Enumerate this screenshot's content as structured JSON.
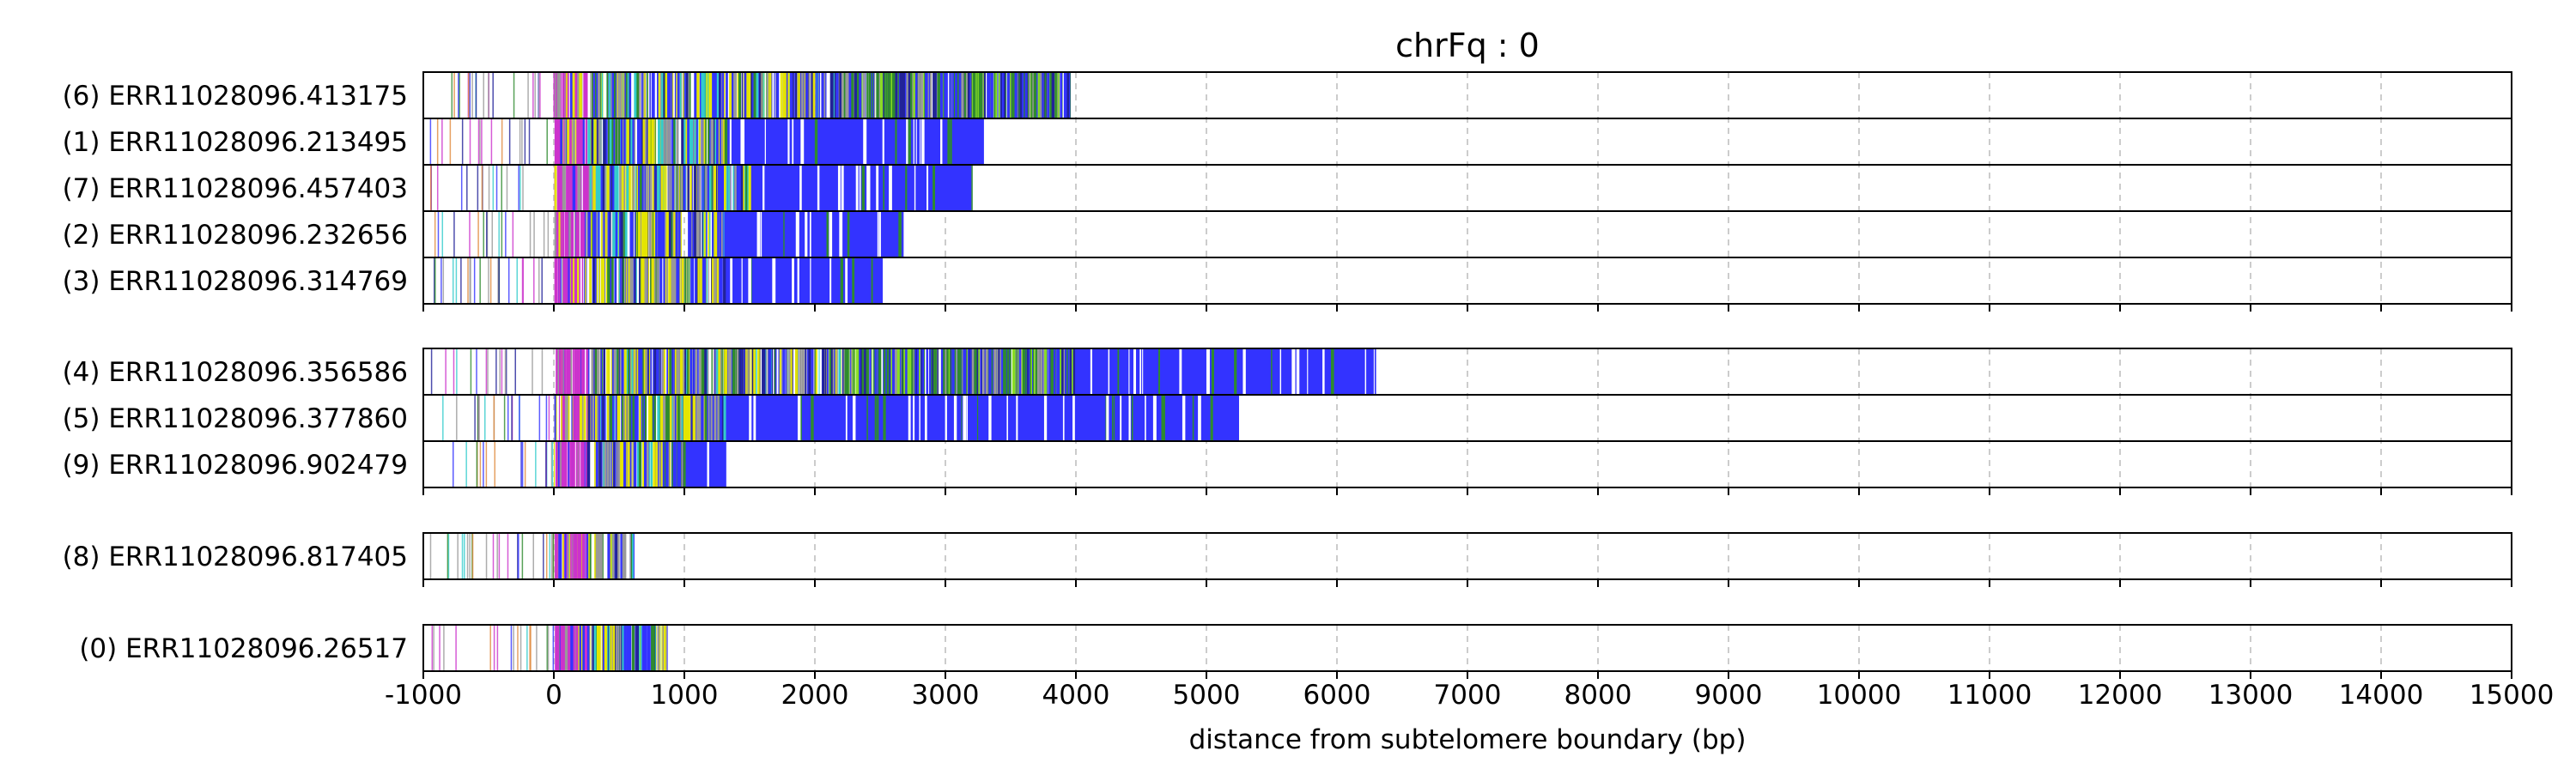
{
  "chart_data": {
    "type": "bar",
    "title": "chrFq : 0",
    "xlabel": "distance from subtelomere boundary (bp)",
    "ylabel": "",
    "xlim": [
      -1000,
      15000
    ],
    "xticks": [
      "-1000",
      "0",
      "1000",
      "2000",
      "3000",
      "4000",
      "5000",
      "6000",
      "7000",
      "8000",
      "9000",
      "10000",
      "11000",
      "12000",
      "13000",
      "14000",
      "15000"
    ],
    "grid": "vertical dashed",
    "groups": [
      {
        "reads": [
          {
            "label": "(6) ERR11028096.413175",
            "start": -950,
            "core_start": 0,
            "dense_until": 4000,
            "end": 3950,
            "blue_from": 3950
          },
          {
            "label": "(1) ERR11028096.213495",
            "start": -950,
            "core_start": 0,
            "dense_until": 1300,
            "end": 3300,
            "blue_from": 1250
          },
          {
            "label": "(7) ERR11028096.457403",
            "start": -950,
            "core_start": 0,
            "dense_until": 1500,
            "end": 3200,
            "blue_from": 1200
          },
          {
            "label": "(2) ERR11028096.232656",
            "start": -950,
            "core_start": 0,
            "dense_until": 1300,
            "end": 2680,
            "blue_from": 1250
          },
          {
            "label": "(3) ERR11028096.314769",
            "start": -950,
            "core_start": 0,
            "dense_until": 1300,
            "end": 2520,
            "blue_from": 1250
          }
        ]
      },
      {
        "reads": [
          {
            "label": "(4) ERR11028096.356586",
            "start": -950,
            "core_start": 0,
            "dense_until": 4000,
            "end": 6300,
            "blue_from": 3800
          },
          {
            "label": "(5) ERR11028096.377860",
            "start": -950,
            "core_start": 0,
            "dense_until": 1300,
            "end": 5250,
            "blue_from": 1000
          },
          {
            "label": "(9) ERR11028096.902479",
            "start": -950,
            "core_start": 0,
            "dense_until": 1000,
            "end": 1330,
            "blue_from": 900
          }
        ]
      },
      {
        "reads": [
          {
            "label": "(8) ERR11028096.817405",
            "start": -950,
            "core_start": 0,
            "dense_until": 600,
            "end": 600,
            "blue_from": 600
          }
        ]
      },
      {
        "reads": [
          {
            "label": "(0) ERR11028096.26517",
            "start": -950,
            "core_start": 0,
            "dense_until": 870,
            "end": 870,
            "blue_from": 870
          }
        ]
      }
    ],
    "colors": {
      "blue": "#3333ff",
      "yellow": "#e5e500",
      "green": "#2e8b2e",
      "magenta": "#cc33cc",
      "cyan": "#33cccc",
      "gray": "#999999",
      "orange": "#e08a3c",
      "navy": "#222299",
      "lime": "#88dd22"
    }
  }
}
